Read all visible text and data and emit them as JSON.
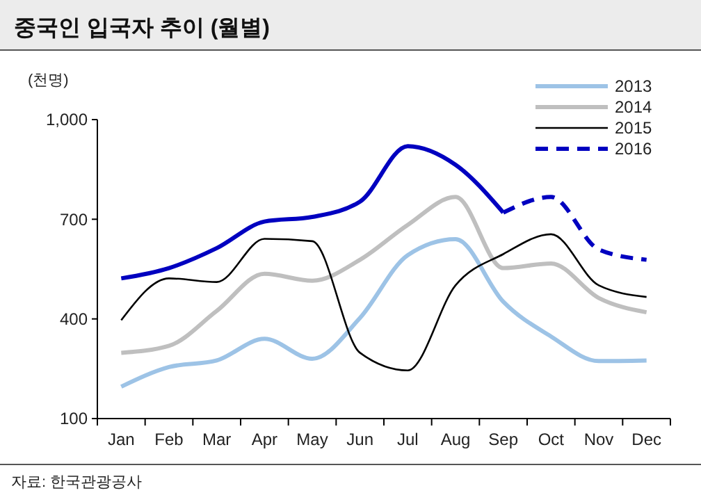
{
  "chart_data": {
    "type": "line",
    "title": "중국인 입국자 추이 (월별)",
    "ylabel": "(천명)",
    "categories": [
      "Jan",
      "Feb",
      "Mar",
      "Apr",
      "May",
      "Jun",
      "Jul",
      "Aug",
      "Sep",
      "Oct",
      "Nov",
      "Dec"
    ],
    "series": [
      {
        "name": "2013",
        "color": "#9dc3e6",
        "values": [
          196,
          255,
          275,
          340,
          280,
          403,
          592,
          640,
          452,
          347,
          273,
          275
        ]
      },
      {
        "name": "2014",
        "color": "#bfbfbf",
        "values": [
          298,
          319,
          424,
          536,
          515,
          578,
          683,
          767,
          553,
          567,
          463,
          420
        ]
      },
      {
        "name": "2015",
        "color": "#000000",
        "values": [
          396,
          522,
          511,
          641,
          634,
          298,
          245,
          501,
          595,
          655,
          501,
          466
        ]
      },
      {
        "color": "#0000c0",
        "line_style": "solid",
        "values": [
          522,
          553,
          613,
          693,
          707,
          753,
          920,
          864,
          720,
          null,
          null,
          null
        ]
      },
      {
        "name": "2016",
        "color": "#0000c0",
        "line_style": "dashed",
        "values": [
          null,
          null,
          null,
          null,
          null,
          null,
          null,
          null,
          720,
          767,
          609,
          578
        ]
      }
    ],
    "ylim": [
      100,
      1000
    ],
    "yticks": [
      100,
      {
        "value": 400,
        "label": "400"
      },
      {
        "value": 700,
        "label": "700"
      },
      {
        "value": 1000,
        "label": "1,000"
      }
    ],
    "grid": false,
    "legend": "top right",
    "marker": "none",
    "annotations": [
      "자료: 한국관광공사"
    ]
  }
}
